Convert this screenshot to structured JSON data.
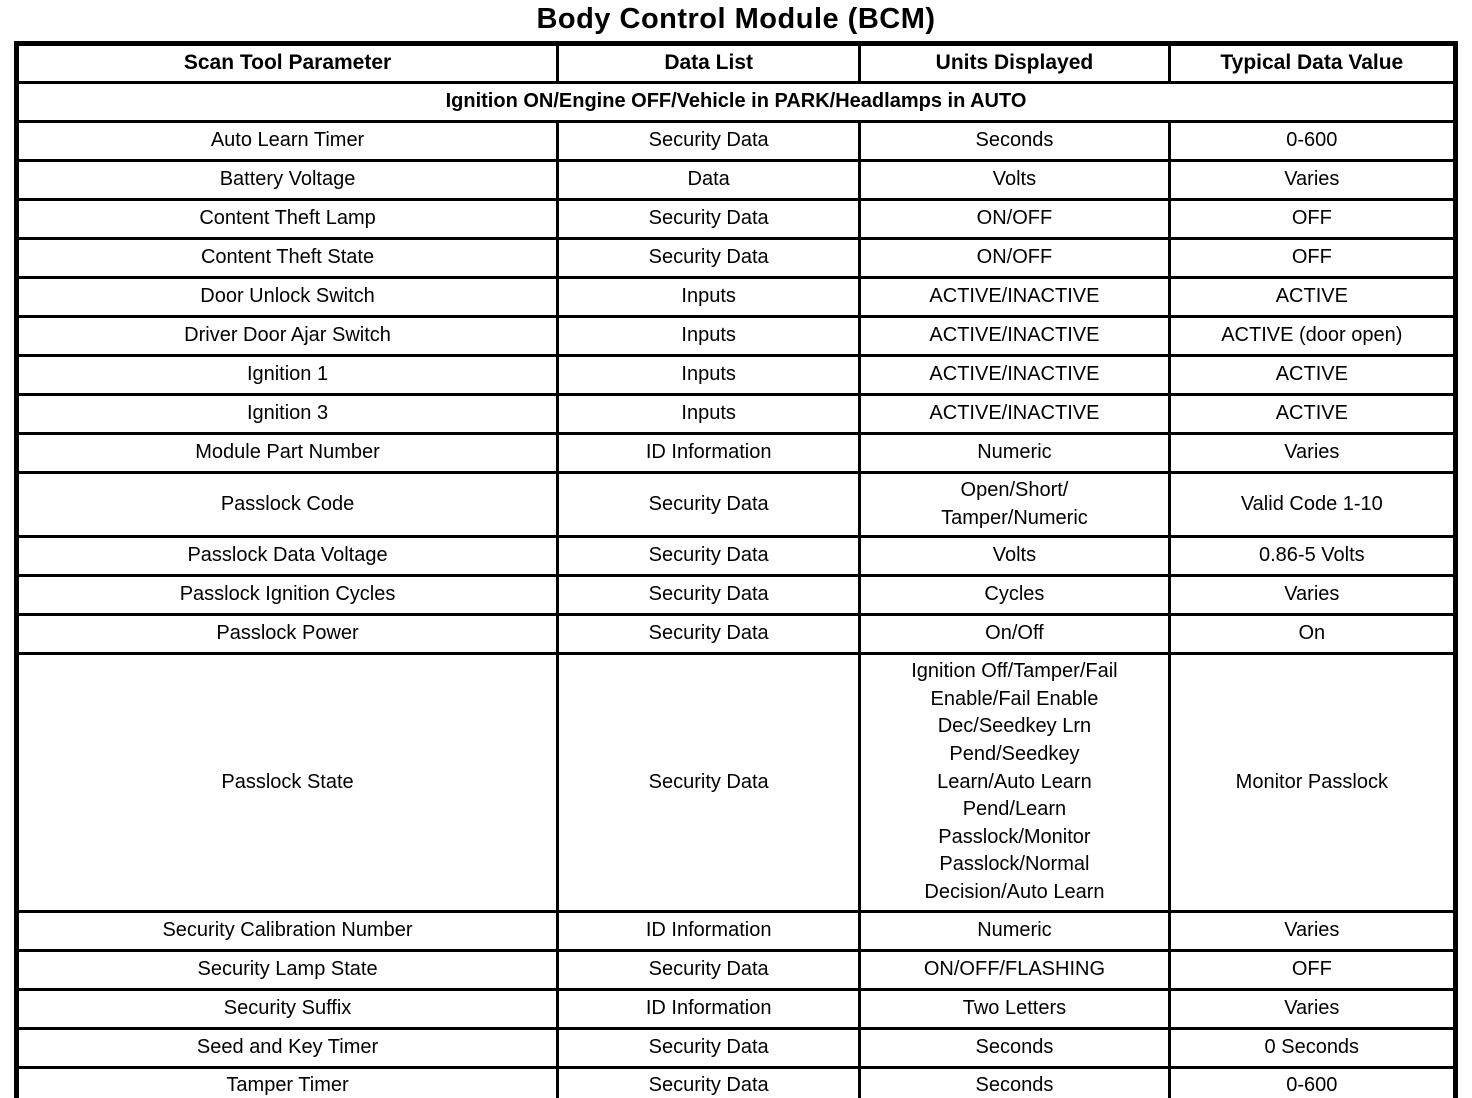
{
  "title": "Body Control Module (BCM)",
  "table": {
    "headers": [
      "Scan Tool Parameter",
      "Data List",
      "Units Displayed",
      "Typical Data Value"
    ],
    "section_header": "Ignition ON/Engine OFF/Vehicle in PARK/Headlamps in AUTO",
    "rows": [
      {
        "parameter": "Auto Learn Timer",
        "data_list": "Security Data",
        "units": "Seconds",
        "value": "0-600"
      },
      {
        "parameter": "Battery Voltage",
        "data_list": "Data",
        "units": "Volts",
        "value": "Varies"
      },
      {
        "parameter": "Content Theft Lamp",
        "data_list": "Security Data",
        "units": "ON/OFF",
        "value": "OFF"
      },
      {
        "parameter": "Content Theft State",
        "data_list": "Security Data",
        "units": "ON/OFF",
        "value": "OFF"
      },
      {
        "parameter": "Door Unlock Switch",
        "data_list": "Inputs",
        "units": "ACTIVE/INACTIVE",
        "value": "ACTIVE"
      },
      {
        "parameter": "Driver Door Ajar Switch",
        "data_list": "Inputs",
        "units": "ACTIVE/INACTIVE",
        "value": "ACTIVE (door open)"
      },
      {
        "parameter": "Ignition 1",
        "data_list": "Inputs",
        "units": "ACTIVE/INACTIVE",
        "value": "ACTIVE"
      },
      {
        "parameter": "Ignition 3",
        "data_list": "Inputs",
        "units": "ACTIVE/INACTIVE",
        "value": "ACTIVE"
      },
      {
        "parameter": "Module Part Number",
        "data_list": "ID Information",
        "units": "Numeric",
        "value": "Varies"
      },
      {
        "parameter": "Passlock Code",
        "data_list": "Security Data",
        "units": "Open/Short/\nTamper/Numeric",
        "value": "Valid Code 1-10"
      },
      {
        "parameter": "Passlock Data Voltage",
        "data_list": "Security Data",
        "units": "Volts",
        "value": "0.86-5 Volts"
      },
      {
        "parameter": "Passlock Ignition Cycles",
        "data_list": "Security Data",
        "units": "Cycles",
        "value": "Varies"
      },
      {
        "parameter": "Passlock Power",
        "data_list": "Security Data",
        "units": "On/Off",
        "value": "On"
      },
      {
        "parameter": "Passlock State",
        "data_list": "Security Data",
        "units": "Ignition Off/Tamper/Fail\nEnable/Fail Enable\nDec/Seedkey Lrn\nPend/Seedkey\nLearn/Auto Learn\nPend/Learn\nPasslock/Monitor\nPasslock/Normal\nDecision/Auto Learn",
        "value": "Monitor Passlock"
      },
      {
        "parameter": "Security Calibration Number",
        "data_list": "ID Information",
        "units": "Numeric",
        "value": "Varies"
      },
      {
        "parameter": "Security Lamp State",
        "data_list": "Security Data",
        "units": "ON/OFF/FLASHING",
        "value": "OFF"
      },
      {
        "parameter": "Security Suffix",
        "data_list": "ID Information",
        "units": "Two Letters",
        "value": "Varies"
      },
      {
        "parameter": "Seed and Key Timer",
        "data_list": "Security Data",
        "units": "Seconds",
        "value": "0 Seconds"
      },
      {
        "parameter": "Tamper Timer",
        "data_list": "Security Data",
        "units": "Seconds",
        "value": "0-600"
      }
    ]
  }
}
